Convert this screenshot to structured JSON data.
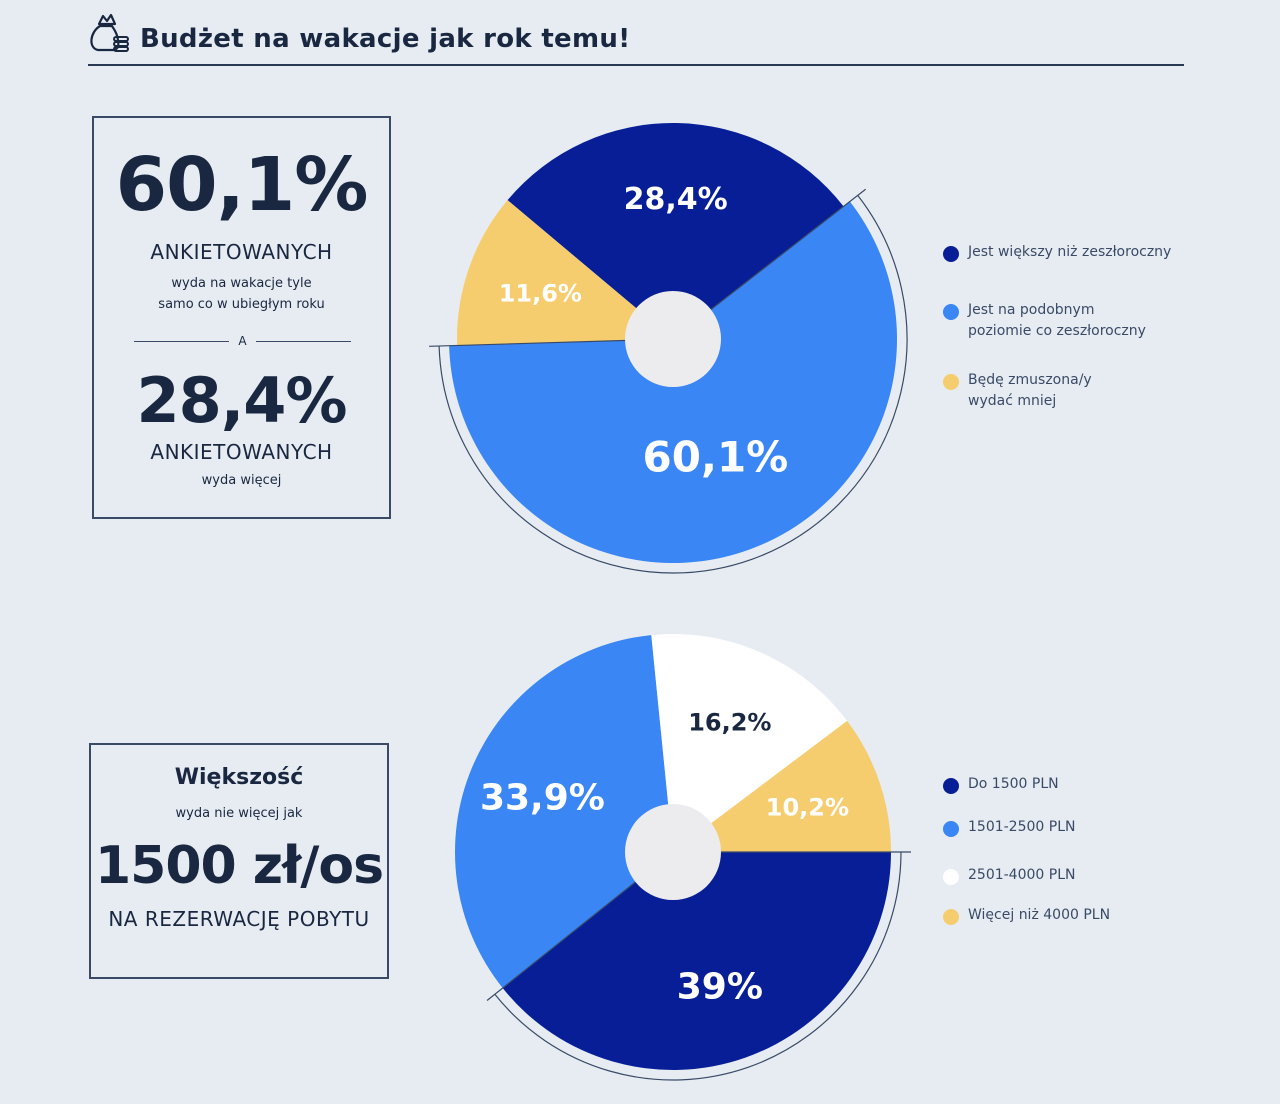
{
  "header": {
    "title": "Budżet na wakacje jak rok temu!",
    "icon": "money-bag-coins-icon"
  },
  "box1": {
    "big1": "60,1%",
    "upper1": "ANKIETOWANYCH",
    "small1": "wyda na wakacje tyle\nsamo co w ubiegłym roku",
    "divider": "A",
    "big2": "28,4%",
    "upper2": "ANKIETOWANYCH",
    "small2": "wyda więcej"
  },
  "box2": {
    "heading": "Większość",
    "small": "wyda nie więcej jak",
    "big": "1500 zł/os",
    "upper": "NA REZERWACJĘ POBYTU"
  },
  "colors": {
    "dark_blue": "#071e96",
    "light_blue": "#3a86f5",
    "yellow": "#f5cd6e",
    "white": "#ffffff",
    "hole": "#ececee",
    "text_dark": "#1a2740",
    "background": "#e6ecf2"
  },
  "chart_data": [
    {
      "type": "pie",
      "categories": [
        "Jest większy niż zeszłoroczny",
        "Jest na podobnym\npoziomie co zeszłoroczny",
        "Będę zmuszona/y\nwydać mniej"
      ],
      "values": [
        28.4,
        60.1,
        11.6
      ],
      "labels": [
        "28,4%",
        "60,1%",
        "11,6%"
      ],
      "colors": [
        "#071e96",
        "#3a86f5",
        "#f5cd6e"
      ],
      "label_colors": [
        "#ffffff",
        "#ffffff",
        "#ffffff"
      ],
      "highlighted": "Jest na podobnym\npoziomie co zeszłoroczny",
      "legend_placement": "right"
    },
    {
      "type": "pie",
      "categories": [
        "Do 1500 PLN",
        "1501-2500 PLN",
        "2501-4000 PLN",
        "Więcej niż 4000 PLN"
      ],
      "values": [
        39,
        33.9,
        16.2,
        10.2
      ],
      "labels": [
        "39%",
        "33,9%",
        "16,2%",
        "10,2%"
      ],
      "colors": [
        "#071e96",
        "#3a86f5",
        "#ffffff",
        "#f5cd6e"
      ],
      "label_colors": [
        "#ffffff",
        "#ffffff",
        "#1a2740",
        "#ffffff"
      ],
      "highlighted": "Do 1500 PLN",
      "legend_placement": "right"
    }
  ]
}
